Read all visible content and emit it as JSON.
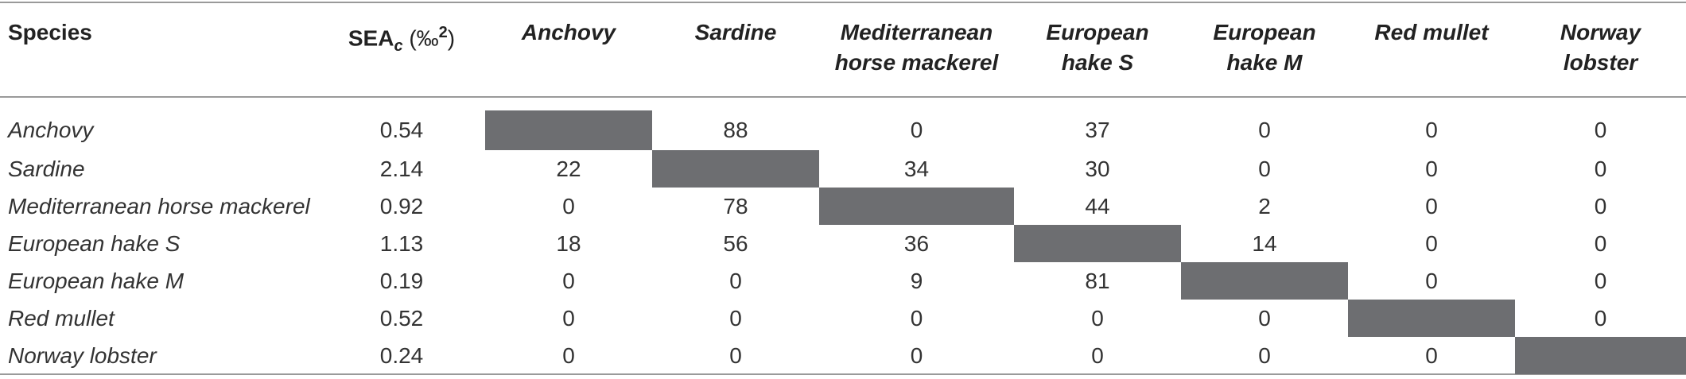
{
  "table": {
    "headers": {
      "species": "Species",
      "sea_main": "SEA",
      "sea_sub": "c",
      "sea_unit_open": " (‰",
      "sea_sup": "2",
      "sea_unit_close": ")",
      "columns": [
        "Anchovy",
        "Sardine",
        "Mediterranean horse mackerel",
        "European hake S",
        "European hake M",
        "Red mullet",
        "Norway lobster"
      ]
    },
    "rows": [
      {
        "name": "Anchovy",
        "sea": "0.54",
        "values": [
          "",
          "88",
          "0",
          "37",
          "0",
          "0",
          "0"
        ]
      },
      {
        "name": "Sardine",
        "sea": "2.14",
        "values": [
          "22",
          "",
          "34",
          "30",
          "0",
          "0",
          "0"
        ]
      },
      {
        "name": "Mediterranean horse mackerel",
        "sea": "0.92",
        "values": [
          "0",
          "78",
          "",
          "44",
          "2",
          "0",
          "0"
        ]
      },
      {
        "name": "European hake S",
        "sea": "1.13",
        "values": [
          "18",
          "56",
          "36",
          "",
          "14",
          "0",
          "0"
        ]
      },
      {
        "name": "European hake M",
        "sea": "0.19",
        "values": [
          "0",
          "0",
          "9",
          "81",
          "",
          "0",
          "0"
        ]
      },
      {
        "name": "Red mullet",
        "sea": "0.52",
        "values": [
          "0",
          "0",
          "0",
          "0",
          "0",
          "",
          "0"
        ]
      },
      {
        "name": "Norway lobster",
        "sea": "0.24",
        "values": [
          "0",
          "0",
          "0",
          "0",
          "0",
          "0",
          ""
        ]
      }
    ],
    "diagonal_color": "#6d6e71",
    "rule_color": "#9a9a9a"
  }
}
